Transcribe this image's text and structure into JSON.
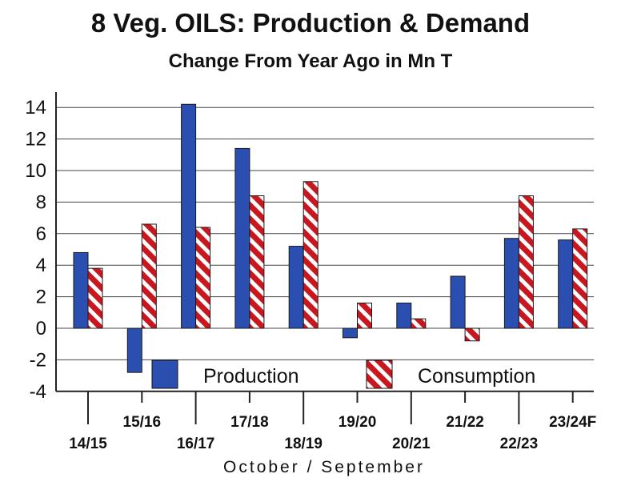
{
  "chart_data": {
    "type": "bar",
    "title": "8 Veg. OILS: Production & Demand",
    "subtitle": "Change From Year Ago in Mn T",
    "xlabel": "October / September",
    "ylabel": "",
    "categories": [
      "14/15",
      "15/16",
      "16/17",
      "17/18",
      "18/19",
      "19/20",
      "20/21",
      "21/22",
      "22/23",
      "23/24F"
    ],
    "series": [
      {
        "name": "Production",
        "color": "#2a4fb0",
        "pattern": "solid",
        "values": [
          4.8,
          -2.8,
          14.2,
          11.4,
          5.2,
          -0.6,
          1.6,
          3.3,
          5.7,
          5.6
        ]
      },
      {
        "name": "Consumption",
        "color": "#c8171e",
        "pattern": "diagonal-stripes",
        "values": [
          3.8,
          6.6,
          6.4,
          8.4,
          9.3,
          1.6,
          0.6,
          -0.8,
          8.4,
          6.3
        ]
      }
    ],
    "yticks": [
      14,
      12,
      10,
      8,
      6,
      4,
      2,
      0,
      -2,
      -4
    ],
    "ylim": [
      -4,
      15
    ],
    "grid": true,
    "legend_position": "bottom"
  }
}
